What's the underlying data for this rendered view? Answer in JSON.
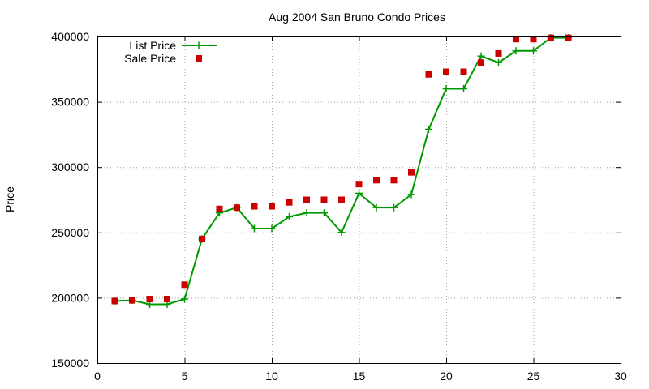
{
  "chart_data": {
    "type": "line",
    "title": "Aug 2004 San Bruno Condo Prices",
    "xlabel": "",
    "ylabel": "Price",
    "xlim": [
      0,
      30
    ],
    "ylim": [
      150000,
      400000
    ],
    "x_ticks": [
      0,
      5,
      10,
      15,
      20,
      25,
      30
    ],
    "y_ticks": [
      150000,
      200000,
      250000,
      300000,
      350000,
      400000
    ],
    "grid": true,
    "legend_position": "top-left",
    "series": [
      {
        "name": "List Price",
        "style": "line-points",
        "color": "#009900",
        "x": [
          1,
          2,
          3,
          4,
          5,
          6,
          7,
          8,
          9,
          10,
          11,
          12,
          13,
          14,
          15,
          16,
          17,
          18,
          19,
          20,
          21,
          22,
          23,
          24,
          25,
          26,
          27
        ],
        "values": [
          197500,
          198000,
          195000,
          195000,
          199000,
          245000,
          265000,
          269000,
          253000,
          253000,
          262000,
          265000,
          265000,
          250000,
          280000,
          269000,
          269000,
          279000,
          329000,
          360000,
          360000,
          385000,
          380000,
          389000,
          389000,
          399000,
          399000
        ]
      },
      {
        "name": "Sale Price",
        "style": "points",
        "color": "#cc0000",
        "x": [
          1,
          2,
          3,
          4,
          5,
          6,
          7,
          8,
          9,
          10,
          11,
          12,
          13,
          14,
          15,
          16,
          17,
          18,
          19,
          20,
          21,
          22,
          23,
          24,
          25,
          26,
          27
        ],
        "values": [
          197500,
          198000,
          199000,
          199000,
          210000,
          245000,
          268000,
          269000,
          270000,
          270000,
          273000,
          275000,
          275000,
          275000,
          287000,
          290000,
          290000,
          296000,
          371000,
          373000,
          373000,
          380000,
          387000,
          398000,
          398000,
          399000,
          399000
        ]
      }
    ]
  }
}
